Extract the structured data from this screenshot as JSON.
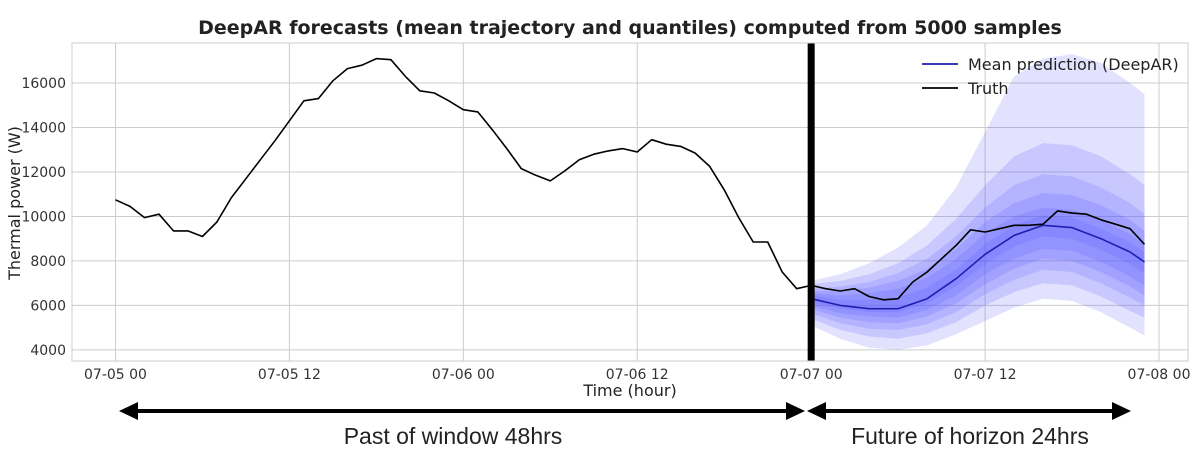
{
  "chart_data": {
    "type": "line",
    "title": "DeepAR forecasts (mean trajectory and quantiles) computed from 5000 samples",
    "xlabel": "Time (hour)",
    "ylabel": "Thermal power (W)",
    "x_unit": "hours from 07-05 00",
    "xlim": [
      -3,
      74
    ],
    "ylim": [
      3500,
      17800
    ],
    "x_ticks": [
      {
        "x": 0,
        "label": "07-05 00"
      },
      {
        "x": 12,
        "label": "07-05 12"
      },
      {
        "x": 24,
        "label": "07-06 00"
      },
      {
        "x": 36,
        "label": "07-06 12"
      },
      {
        "x": 48,
        "label": "07-07 00"
      },
      {
        "x": 60,
        "label": "07-07 12"
      },
      {
        "x": 72,
        "label": "07-08 00"
      }
    ],
    "y_ticks": [
      4000,
      6000,
      8000,
      10000,
      12000,
      14000,
      16000
    ],
    "grid": true,
    "legend_position": "top-right",
    "forecast_start": 48,
    "colors": {
      "truth": "#000000",
      "mean": "#1f1fb0",
      "band": "#5555ff",
      "divider": "#000000"
    },
    "series": [
      {
        "name": "Truth",
        "x": [
          0,
          1,
          2,
          3,
          4,
          5,
          6,
          7,
          8,
          9,
          10,
          11,
          12,
          13,
          14,
          15,
          16,
          17,
          18,
          19,
          20,
          21,
          22,
          23,
          24,
          25,
          26,
          27,
          28,
          29,
          30,
          31,
          32,
          33,
          34,
          35,
          36,
          37,
          38,
          39,
          40,
          41,
          42,
          43,
          44,
          45,
          46,
          47,
          48,
          49,
          50,
          51,
          52,
          53,
          54,
          55,
          56,
          57,
          58,
          59,
          60,
          61,
          62,
          63,
          64,
          65,
          66,
          67,
          68,
          69,
          70,
          71
        ],
        "y": [
          10750,
          10450,
          9950,
          10100,
          9350,
          9350,
          9100,
          9750,
          10850,
          11700,
          12550,
          13400,
          14300,
          15200,
          15300,
          16100,
          16650,
          16800,
          17100,
          17050,
          16300,
          15650,
          15550,
          15200,
          14800,
          14700,
          13900,
          13050,
          12150,
          11850,
          11600,
          12050,
          12550,
          12800,
          12950,
          13050,
          12900,
          13450,
          13250,
          13150,
          12850,
          12250,
          11200,
          9950,
          8850,
          8850,
          7500,
          6750,
          6900,
          6750,
          6650,
          6750,
          6400,
          6250,
          6300,
          7050,
          7500,
          8100,
          8700,
          9400,
          9300,
          9450,
          9600,
          9600,
          9650,
          10250,
          10150,
          10100,
          9850,
          9650,
          9450,
          8750
        ]
      },
      {
        "name": "Mean prediction (DeepAR)",
        "x": [
          48,
          50,
          52,
          54,
          56,
          58,
          60,
          62,
          64,
          66,
          68,
          70,
          71
        ],
        "y": [
          6300,
          6000,
          5850,
          5850,
          6300,
          7200,
          8300,
          9150,
          9600,
          9500,
          9000,
          8400,
          7950
        ]
      }
    ],
    "quantile_bands": [
      {
        "lower": [
          5100,
          4500,
          4100,
          4000,
          4200,
          4700,
          5300,
          5900,
          6300,
          6200,
          5700,
          5000,
          4650
        ],
        "upper": [
          7100,
          7400,
          7900,
          8600,
          9600,
          11300,
          13800,
          16300,
          17100,
          17300,
          16900,
          16000,
          15500
        ]
      },
      {
        "lower": [
          5400,
          4900,
          4600,
          4500,
          4750,
          5250,
          6000,
          6600,
          7000,
          6900,
          6400,
          5750,
          5450
        ],
        "upper": [
          6950,
          7100,
          7400,
          7900,
          8700,
          9900,
          11400,
          12700,
          13300,
          13200,
          12700,
          11900,
          11400
        ]
      },
      {
        "lower": [
          5650,
          5200,
          4950,
          4900,
          5150,
          5700,
          6500,
          7150,
          7600,
          7500,
          7000,
          6350,
          6000
        ],
        "upper": [
          6750,
          6850,
          7050,
          7450,
          8100,
          9100,
          10400,
          11400,
          11900,
          11800,
          11300,
          10600,
          10100
        ]
      },
      {
        "lower": [
          5850,
          5450,
          5250,
          5200,
          5500,
          6100,
          6950,
          7650,
          8100,
          8000,
          7500,
          6850,
          6450
        ],
        "upper": [
          6650,
          6650,
          6800,
          7100,
          7650,
          8550,
          9750,
          10600,
          11050,
          10950,
          10500,
          9850,
          9350
        ]
      },
      {
        "lower": [
          6000,
          5650,
          5500,
          5450,
          5800,
          6450,
          7400,
          8100,
          8550,
          8450,
          7950,
          7300,
          6900
        ],
        "upper": [
          6550,
          6450,
          6550,
          6750,
          7250,
          8100,
          9250,
          10000,
          10400,
          10300,
          9850,
          9200,
          8750
        ]
      },
      {
        "lower": [
          6150,
          5850,
          5700,
          5700,
          6100,
          6850,
          7850,
          8650,
          9100,
          9000,
          8500,
          7850,
          7450
        ],
        "upper": [
          6450,
          6250,
          6250,
          6350,
          6800,
          7600,
          8750,
          9600,
          10050,
          9950,
          9450,
          8850,
          8400
        ]
      }
    ],
    "legend": [
      "Mean prediction (DeepAR)",
      "Truth"
    ]
  },
  "annotations": {
    "past_label": "Past of window 48hrs",
    "future_label": "Future of horizon 24hrs"
  }
}
